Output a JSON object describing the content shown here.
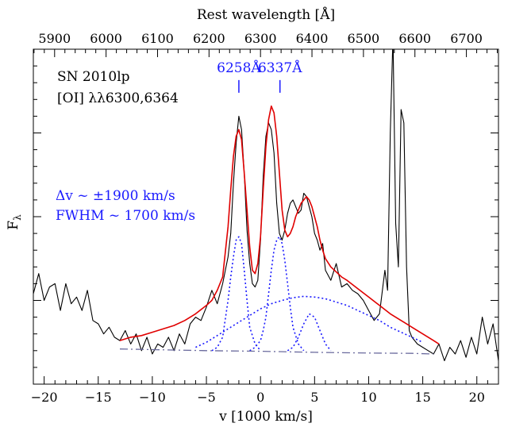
{
  "chart_data": {
    "type": "line",
    "xlabel": "v [1000 km/s]",
    "ylabel": "F",
    "ylabel_sub": "λ",
    "top_xlabel": "Rest wavelength [Å]",
    "xlim": [
      -21,
      22
    ],
    "ylim": [
      0,
      1
    ],
    "x_ticks": [
      -20,
      -15,
      -10,
      -5,
      0,
      5,
      10,
      15,
      20
    ],
    "x_tick_labels": [
      "−20",
      "−15",
      "−10",
      "−5",
      "0",
      "5",
      "10",
      "15",
      "20"
    ],
    "top_ticks": [
      5900,
      6000,
      6100,
      6200,
      6300,
      6400,
      6500,
      6600,
      6700
    ],
    "top_tick_labels": [
      "5900",
      "6000",
      "6100",
      "6200",
      "6300",
      "6400",
      "6500",
      "6600",
      "6700"
    ],
    "top_axis_ref": {
      "wavelength": 6300,
      "velocity": 0
    },
    "annotations": {
      "object": "SN 2010lp",
      "line_id": "[OI] λλ6300,6364",
      "dv": "Δv ~ ±1900 km/s",
      "fwhm": "FWHM ~ 1700 km/s",
      "peak1": "6258Å",
      "peak2": "6337Å"
    },
    "annotation_positions": {
      "peak1": {
        "x": -2.0,
        "y": 0.87
      },
      "peak2": {
        "x": 1.8,
        "y": 0.87
      }
    },
    "colors": {
      "observed": "#000000",
      "fit": "#e00000",
      "components": "#1a1aff",
      "continuum": "#6b6b9e"
    },
    "series": [
      {
        "id": "observed",
        "style": "solid",
        "x": [
          -21,
          -20.5,
          -20,
          -19.5,
          -19,
          -18.5,
          -18,
          -17.5,
          -17,
          -16.5,
          -16,
          -15.5,
          -15,
          -14.5,
          -14,
          -13.5,
          -13,
          -12.5,
          -12,
          -11.5,
          -11,
          -10.5,
          -10,
          -9.5,
          -9,
          -8.5,
          -8,
          -7.5,
          -7,
          -6.5,
          -6,
          -5.5,
          -5,
          -4.5,
          -4,
          -3.5,
          -3,
          -2.75,
          -2.5,
          -2.25,
          -2,
          -1.75,
          -1.5,
          -1.25,
          -1,
          -0.75,
          -0.5,
          -0.25,
          0,
          0.25,
          0.5,
          0.75,
          1,
          1.25,
          1.5,
          1.75,
          2,
          2.25,
          2.5,
          2.75,
          3,
          3.25,
          3.5,
          3.75,
          4,
          4.25,
          4.5,
          4.75,
          5,
          5.25,
          5.5,
          5.75,
          6,
          6.5,
          7,
          7.5,
          8,
          8.5,
          9,
          9.5,
          10,
          10.5,
          11,
          11.5,
          11.75,
          12,
          12.25,
          12.5,
          12.75,
          13,
          13.25,
          13.5,
          13.75,
          14,
          14.5,
          15,
          15.5,
          16,
          16.5,
          17,
          17.5,
          18,
          18.5,
          19,
          19.5,
          20,
          20.5,
          21,
          21.5,
          22
        ],
        "y": [
          0.27,
          0.33,
          0.25,
          0.29,
          0.3,
          0.22,
          0.3,
          0.24,
          0.26,
          0.22,
          0.28,
          0.19,
          0.18,
          0.15,
          0.17,
          0.14,
          0.13,
          0.16,
          0.12,
          0.15,
          0.1,
          0.14,
          0.09,
          0.12,
          0.11,
          0.14,
          0.1,
          0.15,
          0.12,
          0.18,
          0.2,
          0.19,
          0.23,
          0.28,
          0.24,
          0.3,
          0.38,
          0.45,
          0.6,
          0.72,
          0.8,
          0.76,
          0.63,
          0.46,
          0.36,
          0.3,
          0.29,
          0.31,
          0.43,
          0.62,
          0.74,
          0.78,
          0.76,
          0.69,
          0.54,
          0.45,
          0.43,
          0.46,
          0.51,
          0.54,
          0.55,
          0.53,
          0.51,
          0.52,
          0.57,
          0.56,
          0.53,
          0.5,
          0.45,
          0.43,
          0.4,
          0.42,
          0.34,
          0.31,
          0.36,
          0.29,
          0.3,
          0.28,
          0.27,
          0.25,
          0.22,
          0.19,
          0.21,
          0.34,
          0.28,
          0.75,
          1.04,
          0.48,
          0.35,
          0.82,
          0.78,
          0.35,
          0.16,
          0.14,
          0.12,
          0.11,
          0.1,
          0.09,
          0.12,
          0.07,
          0.11,
          0.09,
          0.13,
          0.08,
          0.14,
          0.09,
          0.2,
          0.12,
          0.18,
          0.07
        ]
      },
      {
        "id": "fit",
        "style": "solid",
        "x": [
          -13,
          -12,
          -11,
          -10,
          -9,
          -8,
          -7,
          -6,
          -5,
          -4.5,
          -4,
          -3.5,
          -3,
          -2.75,
          -2.5,
          -2.25,
          -2,
          -1.75,
          -1.5,
          -1.25,
          -1,
          -0.75,
          -0.5,
          -0.25,
          0,
          0.25,
          0.5,
          0.75,
          1,
          1.25,
          1.5,
          1.75,
          2,
          2.25,
          2.5,
          2.75,
          3,
          3.25,
          3.5,
          3.75,
          4,
          4.25,
          4.5,
          4.75,
          5,
          5.25,
          5.5,
          5.75,
          6,
          6.5,
          7,
          7.5,
          8,
          9,
          10,
          11,
          12,
          13,
          14,
          15,
          16,
          16.5
        ],
        "y": [
          0.13,
          0.14,
          0.145,
          0.155,
          0.165,
          0.175,
          0.19,
          0.21,
          0.235,
          0.25,
          0.28,
          0.32,
          0.47,
          0.58,
          0.68,
          0.74,
          0.76,
          0.73,
          0.63,
          0.52,
          0.41,
          0.34,
          0.33,
          0.36,
          0.44,
          0.58,
          0.71,
          0.79,
          0.83,
          0.81,
          0.74,
          0.63,
          0.52,
          0.46,
          0.44,
          0.45,
          0.47,
          0.5,
          0.52,
          0.54,
          0.55,
          0.56,
          0.55,
          0.53,
          0.5,
          0.47,
          0.43,
          0.4,
          0.375,
          0.35,
          0.335,
          0.32,
          0.31,
          0.285,
          0.26,
          0.235,
          0.21,
          0.19,
          0.17,
          0.15,
          0.13,
          0.12
        ]
      },
      {
        "id": "component-1",
        "style": "dotted",
        "x": [
          -4.5,
          -4,
          -3.5,
          -3,
          -2.75,
          -2.5,
          -2.25,
          -2,
          -1.75,
          -1.5,
          -1.25,
          -1,
          -0.5,
          0
        ],
        "y": [
          0.1,
          0.11,
          0.14,
          0.25,
          0.32,
          0.38,
          0.43,
          0.44,
          0.42,
          0.34,
          0.25,
          0.17,
          0.12,
          0.1
        ]
      },
      {
        "id": "component-2",
        "style": "dotted",
        "x": [
          -1,
          -0.5,
          0,
          0.25,
          0.5,
          0.75,
          1,
          1.25,
          1.5,
          1.75,
          2,
          2.25,
          2.5,
          2.75,
          3,
          3.5,
          4
        ],
        "y": [
          0.1,
          0.11,
          0.13,
          0.16,
          0.2,
          0.27,
          0.34,
          0.4,
          0.43,
          0.44,
          0.42,
          0.37,
          0.3,
          0.23,
          0.17,
          0.12,
          0.1
        ]
      },
      {
        "id": "component-3",
        "style": "dotted",
        "x": [
          2.5,
          3,
          3.5,
          4,
          4.5,
          5,
          5.5,
          6,
          6.5
        ],
        "y": [
          0.1,
          0.11,
          0.14,
          0.18,
          0.21,
          0.2,
          0.16,
          0.12,
          0.1
        ]
      },
      {
        "id": "component-broad",
        "style": "dotted",
        "x": [
          -6,
          -5,
          -4,
          -3,
          -2,
          -1,
          0,
          1,
          2,
          3,
          4,
          5,
          6,
          7,
          8,
          9,
          10,
          11,
          12,
          13,
          14,
          15
        ],
        "y": [
          0.11,
          0.125,
          0.145,
          0.165,
          0.185,
          0.205,
          0.225,
          0.24,
          0.25,
          0.258,
          0.262,
          0.26,
          0.255,
          0.245,
          0.235,
          0.22,
          0.205,
          0.19,
          0.17,
          0.155,
          0.14,
          0.125
        ]
      },
      {
        "id": "continuum",
        "style": "dashdot",
        "x": [
          -13,
          -5,
          0,
          5,
          10,
          14,
          16
        ],
        "y": [
          0.105,
          0.1,
          0.098,
          0.095,
          0.093,
          0.092,
          0.09
        ]
      }
    ]
  }
}
